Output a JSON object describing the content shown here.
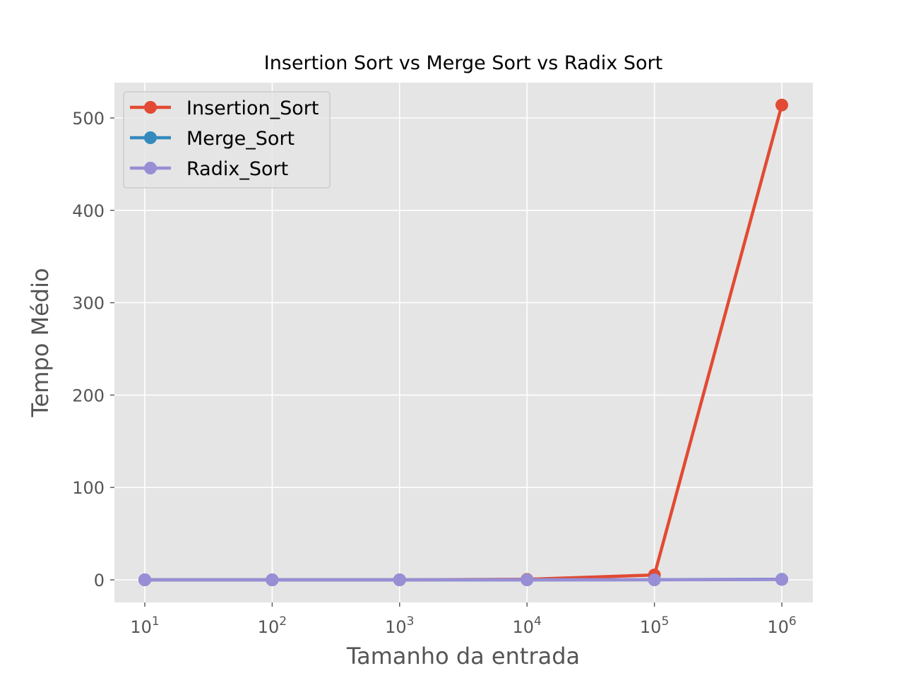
{
  "chart_data": {
    "type": "line",
    "title": "Insertion Sort vs Merge Sort vs Radix Sort",
    "xlabel": "Tamanho da entrada",
    "ylabel": "Tempo Médio",
    "x_scale": "log",
    "x": [
      10,
      100,
      1000,
      10000,
      100000,
      1000000
    ],
    "x_tick_labels": [
      {
        "base": "10",
        "exp": "1"
      },
      {
        "base": "10",
        "exp": "2"
      },
      {
        "base": "10",
        "exp": "3"
      },
      {
        "base": "10",
        "exp": "4"
      },
      {
        "base": "10",
        "exp": "5"
      },
      {
        "base": "10",
        "exp": "6"
      }
    ],
    "y_ticks": [
      0,
      100,
      200,
      300,
      400,
      500
    ],
    "ylim": [
      -25,
      540
    ],
    "grid": true,
    "legend_position": "top-left",
    "series": [
      {
        "name": "Insertion_Sort",
        "color": "#E24A33",
        "values": [
          0.0,
          0.0,
          0.01,
          0.5,
          5.3,
          514
        ]
      },
      {
        "name": "Merge_Sort",
        "color": "#348ABD",
        "values": [
          0.0,
          0.0,
          0.0,
          0.0,
          0.05,
          0.6
        ]
      },
      {
        "name": "Radix_Sort",
        "color": "#988ED5",
        "values": [
          0.0,
          0.0,
          0.0,
          0.0,
          0.04,
          0.4
        ]
      }
    ]
  }
}
